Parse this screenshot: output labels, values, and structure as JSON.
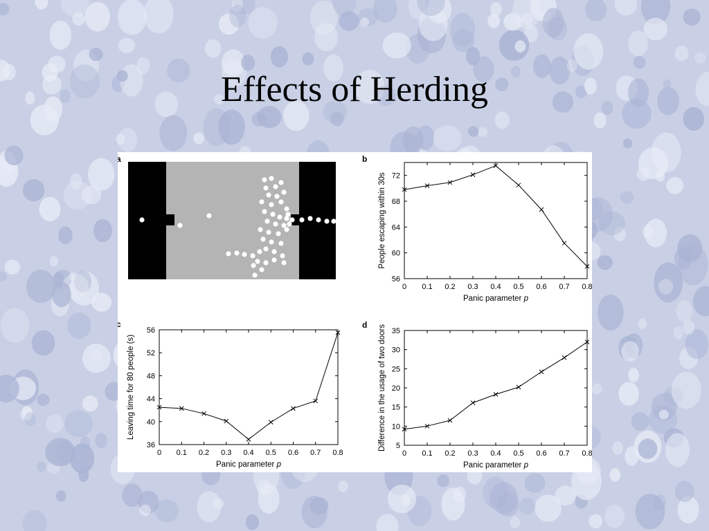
{
  "slide": {
    "title": "Effects of Herding",
    "bg_color": "#c9d0e6",
    "bg_blob_color": "#e8ecf6",
    "bg_dark_color": "#a9b3d3"
  },
  "panel_a": {
    "letter": "a",
    "description_icon": "evacuation-simulation",
    "wall_color": "#000000",
    "room_color": "#b4b4b4",
    "person_color": "#ffffff"
  },
  "chart_data": [
    {
      "id": "b",
      "letter": "b",
      "type": "line",
      "xlabel_main": "Panic parameter ",
      "xlabel_var": "p",
      "ylabel": "People escaping within 30s",
      "x": [
        0,
        0.1,
        0.2,
        0.3,
        0.4,
        0.5,
        0.6,
        0.7,
        0.8
      ],
      "y": [
        69.8,
        70.4,
        70.9,
        72.1,
        73.5,
        70.5,
        66.7,
        61.5,
        57.9
      ],
      "xlim": [
        0,
        0.8
      ],
      "ylim": [
        56,
        74
      ],
      "xticks": [
        "0",
        "0.1",
        "0.2",
        "0.3",
        "0.4",
        "0.5",
        "0.6",
        "0.7",
        "0.8"
      ],
      "yticks": [
        56,
        60,
        64,
        68,
        72
      ],
      "marker": "x"
    },
    {
      "id": "c",
      "letter": "c",
      "type": "line",
      "xlabel_main": "Panic parameter ",
      "xlabel_var": "p",
      "ylabel": "Leaving time for 80 people (s)",
      "x": [
        0,
        0.1,
        0.2,
        0.3,
        0.4,
        0.5,
        0.6,
        0.7,
        0.8
      ],
      "y": [
        42.5,
        42.3,
        41.4,
        40.1,
        36.9,
        39.9,
        42.3,
        43.6,
        55.5
      ],
      "xlim": [
        0,
        0.8
      ],
      "ylim": [
        36,
        56
      ],
      "xticks": [
        "0",
        "0.1",
        "0.2",
        "0.3",
        "0.4",
        "0.5",
        "0.6",
        "0.7",
        "0.8"
      ],
      "yticks": [
        36,
        40,
        44,
        48,
        52,
        56
      ],
      "marker": "x"
    },
    {
      "id": "d",
      "letter": "d",
      "type": "line",
      "xlabel_main": "Panic parameter ",
      "xlabel_var": "p",
      "ylabel": "Difference in the usage of two doors",
      "x": [
        0,
        0.1,
        0.2,
        0.3,
        0.4,
        0.5,
        0.6,
        0.7,
        0.8
      ],
      "y": [
        9.2,
        10.0,
        11.5,
        16.1,
        18.3,
        20.2,
        24.2,
        27.9,
        32.0
      ],
      "xlim": [
        0,
        0.8
      ],
      "ylim": [
        5,
        35
      ],
      "xticks": [
        "0",
        "0.1",
        "0.2",
        "0.3",
        "0.4",
        "0.5",
        "0.6",
        "0.7",
        "0.8"
      ],
      "yticks": [
        5,
        10,
        15,
        20,
        25,
        30,
        35
      ],
      "marker": "x"
    }
  ]
}
